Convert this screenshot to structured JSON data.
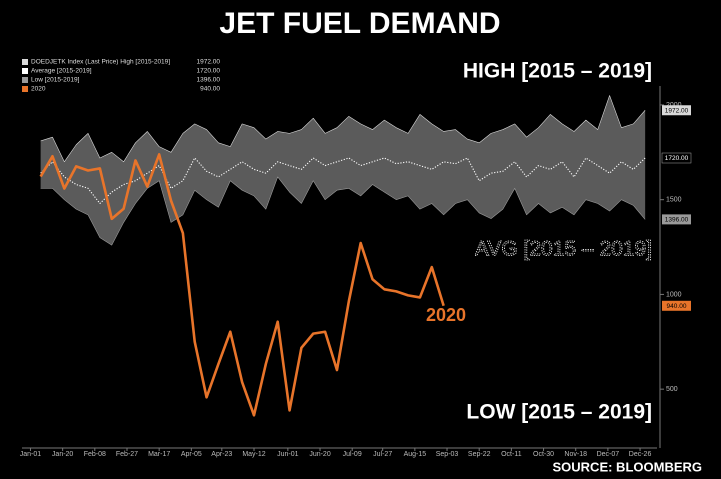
{
  "chart_data": {
    "type": "line",
    "title": "JET FUEL DEMAND",
    "source": "SOURCE: BLOOMBERG",
    "annotations": [
      "HIGH [2015 – 2019]",
      "AVG [2015 – 2019]",
      "LOW [2015 – 2019]",
      "2020"
    ],
    "x": [
      6,
      13,
      20,
      27,
      34,
      41,
      48,
      55,
      62,
      69,
      76,
      83,
      90,
      97,
      104,
      111,
      118,
      125,
      132,
      139,
      146,
      153,
      160,
      167,
      174,
      181,
      188,
      195,
      202,
      209,
      216,
      223,
      230,
      237,
      244,
      251,
      258,
      265,
      272,
      279,
      286,
      293,
      300,
      307,
      314,
      321,
      328,
      335,
      342,
      349,
      356,
      363
    ],
    "xlim": [
      -5,
      370
    ],
    "xticks": [
      {
        "value": 0,
        "label": "Jan-01"
      },
      {
        "value": 19,
        "label": "Jan-20"
      },
      {
        "value": 38,
        "label": "Feb-08"
      },
      {
        "value": 57,
        "label": "Feb-27"
      },
      {
        "value": 76,
        "label": "Mar-17"
      },
      {
        "value": 95,
        "label": "Apr-05"
      },
      {
        "value": 113,
        "label": "Apr-23"
      },
      {
        "value": 132,
        "label": "May-12"
      },
      {
        "value": 152,
        "label": "Jun-01"
      },
      {
        "value": 171,
        "label": "Jun-20"
      },
      {
        "value": 190,
        "label": "Jul-09"
      },
      {
        "value": 208,
        "label": "Jul-27"
      },
      {
        "value": 227,
        "label": "Aug-15"
      },
      {
        "value": 246,
        "label": "Sep-03"
      },
      {
        "value": 265,
        "label": "Sep-22"
      },
      {
        "value": 284,
        "label": "Oct-11"
      },
      {
        "value": 303,
        "label": "Oct-30"
      },
      {
        "value": 322,
        "label": "Nov-18"
      },
      {
        "value": 341,
        "label": "Dec-07"
      },
      {
        "value": 360,
        "label": "Dec-26"
      }
    ],
    "ylim": [
      200,
      2100
    ],
    "yticks": [
      500,
      1000,
      1500,
      2000
    ],
    "band_color": "#5b5b5b",
    "series": [
      {
        "name": "DOEDJETK Index (Last Price) High [2015-2019]",
        "color": "#d9d9d9",
        "style": "band-edge",
        "last": {
          "value": 1972,
          "label": "1972.00"
        },
        "values": [
          1810,
          1830,
          1700,
          1790,
          1850,
          1720,
          1750,
          1700,
          1800,
          1860,
          1780,
          1750,
          1850,
          1900,
          1870,
          1800,
          1780,
          1900,
          1880,
          1820,
          1860,
          1850,
          1870,
          1930,
          1850,
          1880,
          1940,
          1900,
          1870,
          1920,
          1880,
          1850,
          1950,
          1900,
          1860,
          1870,
          1820,
          1800,
          1850,
          1870,
          1900,
          1830,
          1880,
          1950,
          1900,
          1860,
          1920,
          1870,
          2050,
          1880,
          1900,
          1972
        ]
      },
      {
        "name": "Average [2015-2019]",
        "color": "#ffffff",
        "style": "dotted",
        "last": {
          "value": 1720,
          "label": "1720.00"
        },
        "values": [
          1640,
          1700,
          1620,
          1580,
          1560,
          1480,
          1540,
          1580,
          1600,
          1640,
          1680,
          1560,
          1600,
          1720,
          1650,
          1620,
          1660,
          1700,
          1660,
          1640,
          1700,
          1680,
          1660,
          1720,
          1680,
          1700,
          1720,
          1680,
          1700,
          1720,
          1690,
          1700,
          1680,
          1660,
          1700,
          1690,
          1720,
          1600,
          1640,
          1650,
          1700,
          1620,
          1680,
          1660,
          1700,
          1620,
          1720,
          1680,
          1640,
          1700,
          1660,
          1720
        ]
      },
      {
        "name": "Low [2015-2019]",
        "color": "#9a9a9a",
        "style": "band-edge",
        "last": {
          "value": 1396,
          "label": "1396.00"
        },
        "values": [
          1560,
          1560,
          1500,
          1450,
          1420,
          1300,
          1260,
          1380,
          1480,
          1560,
          1600,
          1380,
          1420,
          1550,
          1500,
          1460,
          1600,
          1550,
          1520,
          1450,
          1620,
          1540,
          1480,
          1600,
          1500,
          1550,
          1560,
          1520,
          1580,
          1540,
          1500,
          1520,
          1450,
          1480,
          1420,
          1480,
          1500,
          1430,
          1400,
          1450,
          1560,
          1420,
          1480,
          1430,
          1460,
          1420,
          1500,
          1480,
          1440,
          1500,
          1470,
          1396
        ]
      },
      {
        "name": "2020",
        "color": "#e8742a",
        "style": "solid",
        "last": {
          "value": 940,
          "label": "940.00"
        },
        "values": [
          1622,
          1729,
          1559,
          1676,
          1654,
          1665,
          1399,
          1452,
          1707,
          1569,
          1739,
          1495,
          1324,
          750,
          457,
          633,
          803,
          537,
          362,
          633,
          856,
          388,
          718,
          793,
          803,
          601,
          963,
          1271,
          1080,
          1027,
          1016,
          995,
          984,
          1144,
          940,
          null,
          null,
          null,
          null,
          null,
          null,
          null,
          null,
          null,
          null,
          null,
          null,
          null,
          null,
          null,
          null,
          null
        ]
      }
    ]
  }
}
